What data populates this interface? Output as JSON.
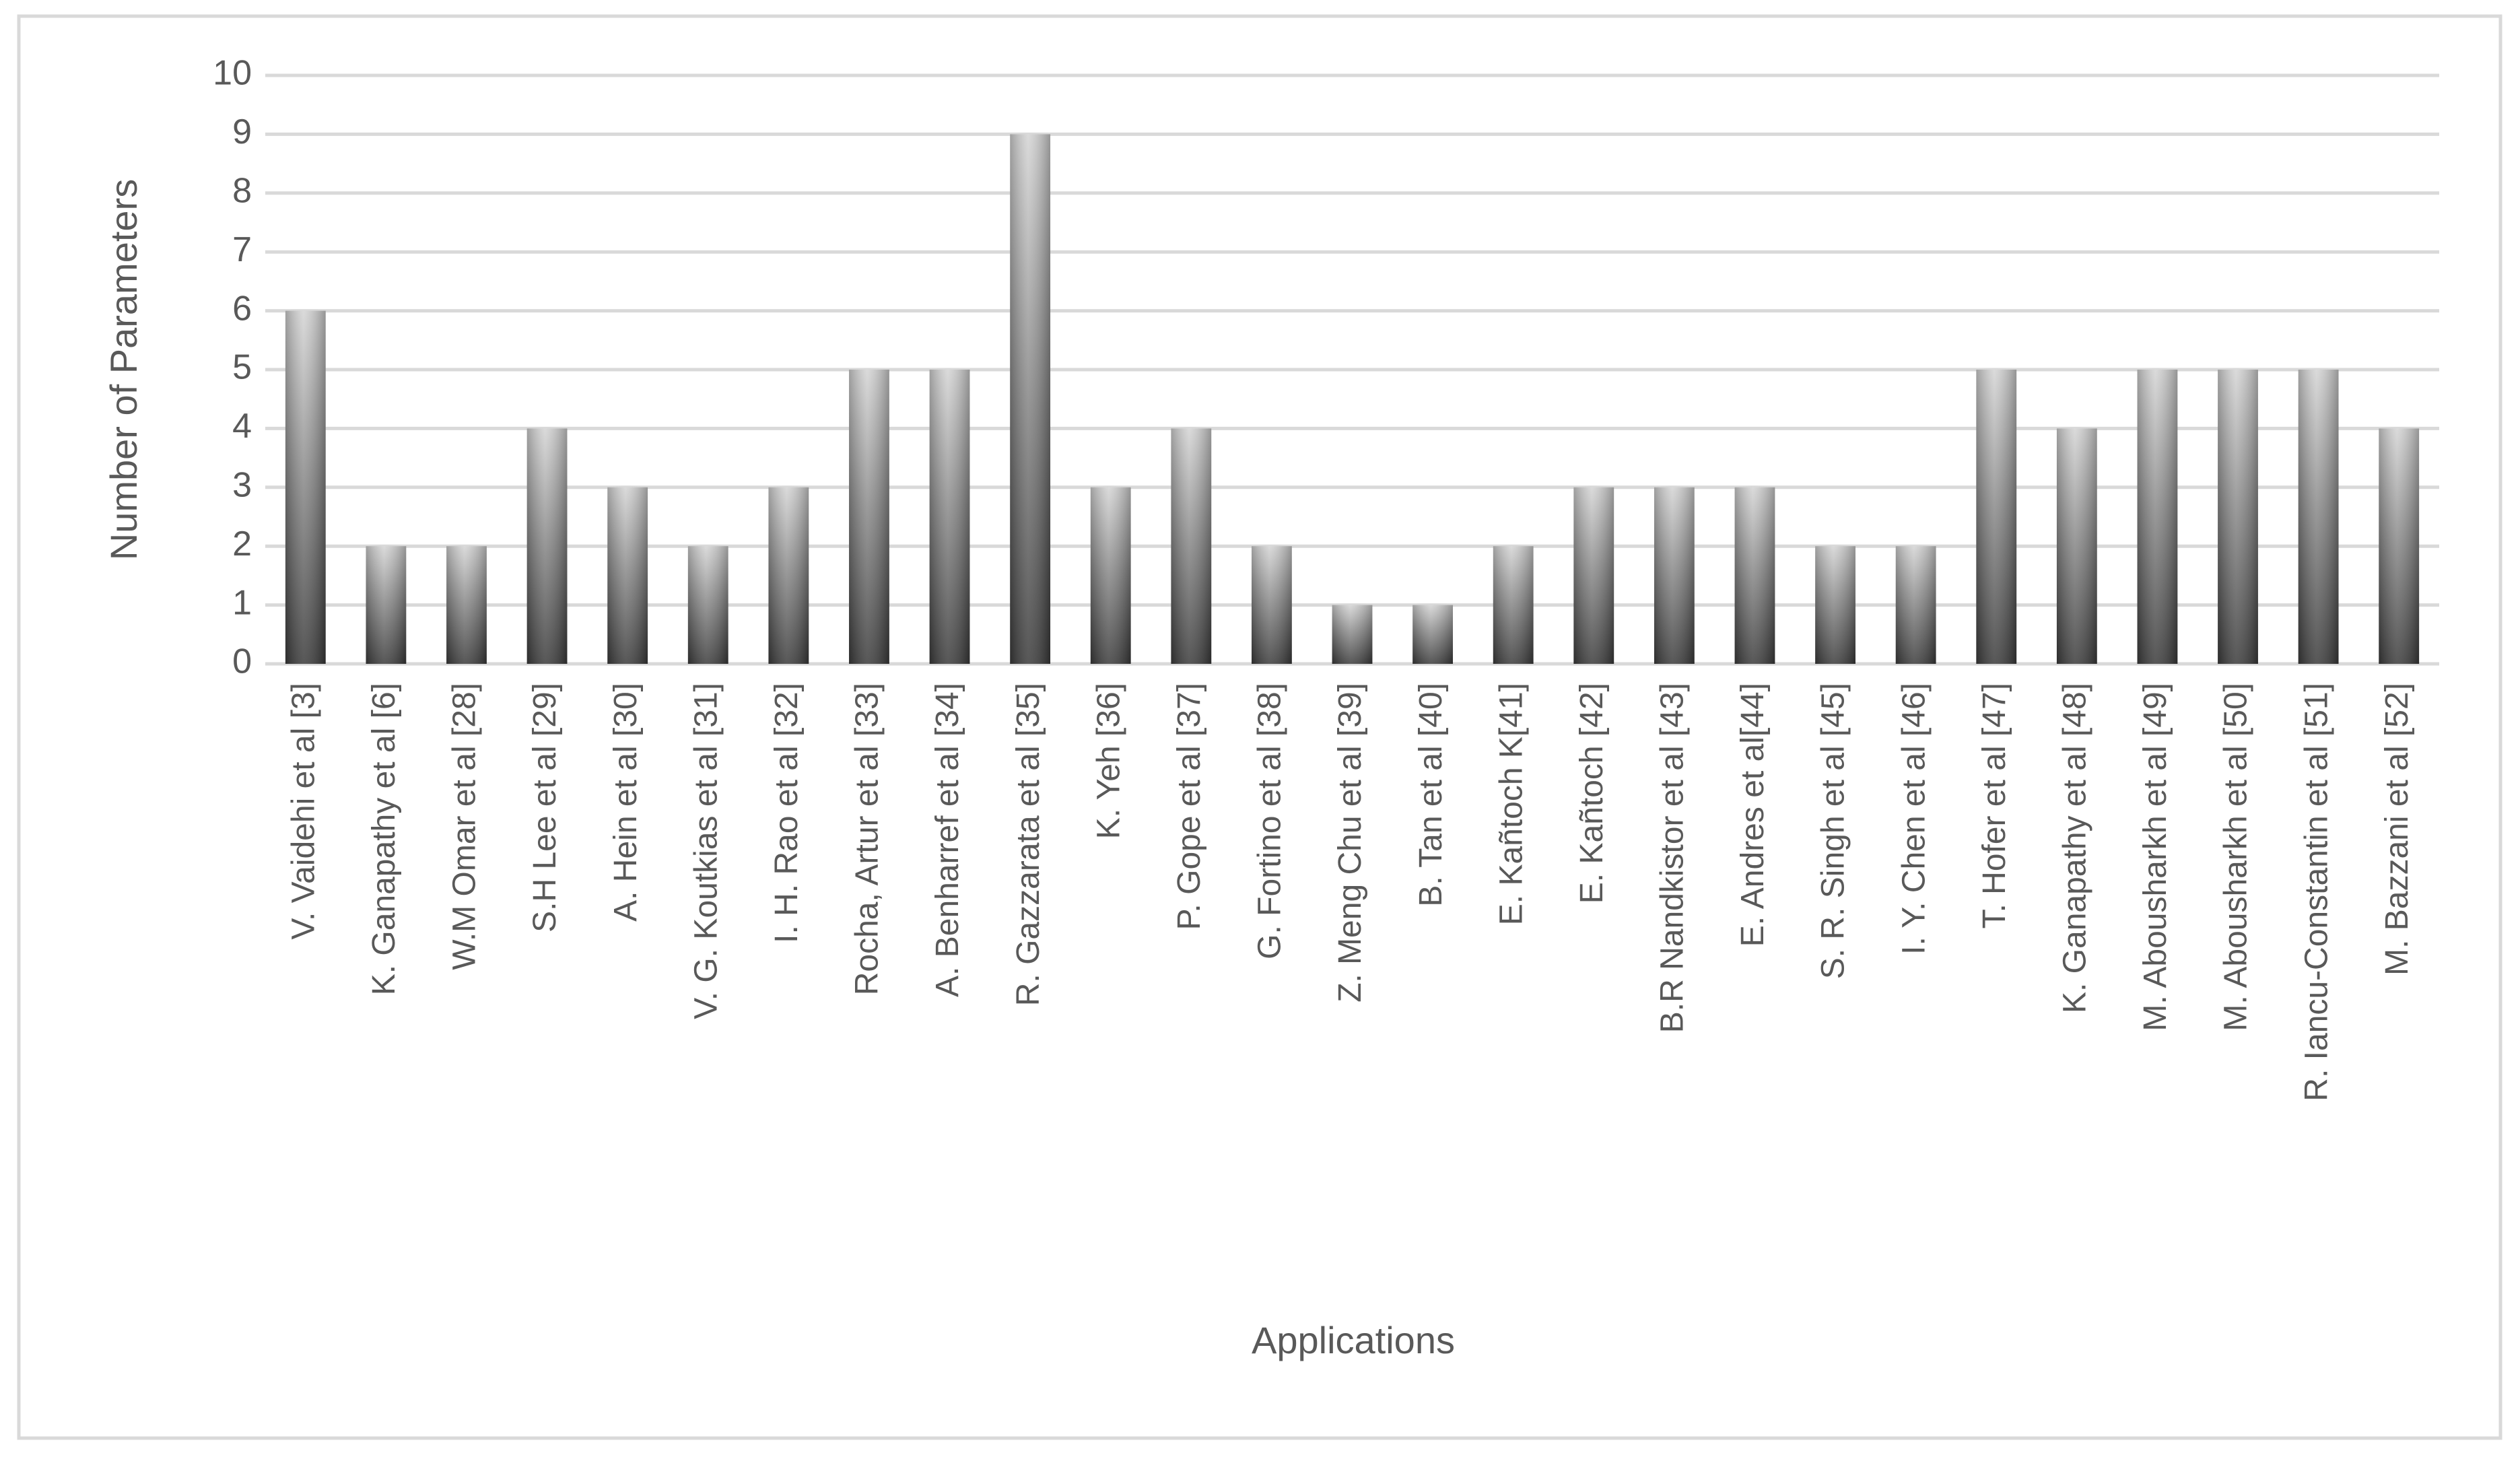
{
  "chart_data": {
    "type": "bar",
    "x_label": "Applications",
    "y_label": "Number of Parameters",
    "categories": [
      "V. Vaidehi et al [3]",
      "K. Ganapathy et al [6]",
      "W.M Omar et al [28]",
      "S.H Lee et al [29]",
      "A. Hein et al [30]",
      "V. G. Koutkias et al [31]",
      "I. H. Rao et al [32]",
      "Rocha, Artur et al [33]",
      "A. Benharref et al [34]",
      "R. Gazzarata et al [35]",
      "K. Yeh [36]",
      "P. Gope et al [37]",
      "G. Fortino et al [38]",
      "Z. Meng Chu et al [39]",
      "B. Tan et al [40]",
      "E. Kañtoch K[41]",
      "E. Kañtoch [42]",
      "B.R Nandkistor et al [43]",
      "E. Andres et al[44]",
      "S. R. Singh et al [45]",
      "I. Y. Chen et al [46]",
      "T. Hofer et al [47]",
      "K. Ganapathy  et al [48]",
      "M. Abousharkh et al [49]",
      "M. Abousharkh et al [50]",
      "R. Iancu-Constantin et al [51]",
      "M. Bazzani et al [52]"
    ],
    "values": [
      6,
      2,
      2,
      4,
      3,
      2,
      3,
      5,
      5,
      9,
      3,
      4,
      2,
      1,
      1,
      2,
      3,
      3,
      3,
      2,
      2,
      5,
      4,
      5,
      5,
      5,
      4
    ],
    "color": "#7f7f7f",
    "ylim": [
      0,
      10
    ],
    "yticks": [
      0,
      1,
      2,
      3,
      4,
      5,
      6,
      7,
      8,
      9,
      10
    ],
    "grid": true
  }
}
